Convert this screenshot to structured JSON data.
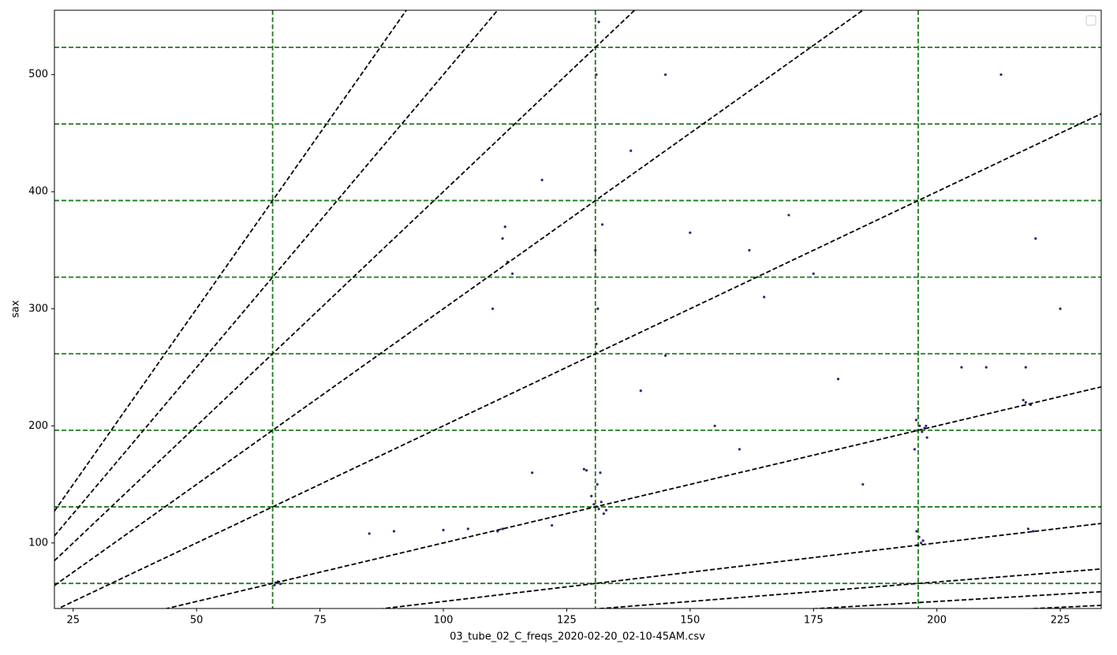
{
  "chart_data": {
    "type": "scatter",
    "xlabel": "03_tube_02_C_freqs_2020-02-20_02-10-45AM.csv",
    "ylabel": "sax",
    "xlim": [
      21.2,
      233.3
    ],
    "ylim": [
      44,
      555
    ],
    "xticks": [
      25,
      50,
      75,
      100,
      125,
      150,
      175,
      200,
      225
    ],
    "yticks": [
      100,
      200,
      300,
      400,
      500
    ],
    "vlines": [
      65.41,
      130.81,
      196.22
    ],
    "hlines": [
      65.41,
      130.81,
      196.22,
      261.63,
      327.03,
      392.44,
      457.85,
      523.25
    ],
    "harmonic_color": "#1f7a1f",
    "ratio_slopes": [
      6,
      5,
      4,
      3,
      2,
      1,
      0.5,
      0.3333,
      0.25,
      0.2
    ],
    "ratio_color": "#000000",
    "series": [
      {
        "color": "#3b1f6e",
        "x": [
          66,
          66.5,
          65.8,
          67,
          131,
          130.5,
          131.5,
          132,
          129.5,
          133,
          130,
          131.2,
          131.8,
          132.5,
          129,
          128.5,
          131,
          131.3,
          130.8,
          132.2,
          131,
          131.5,
          196,
          196.5,
          195.8,
          197,
          197.5,
          196.2,
          198,
          195.5,
          196.8,
          197.2,
          196,
          196.4,
          195.9,
          197.8,
          218,
          219,
          217.5,
          219.5,
          218.5,
          218,
          220,
          112,
          111,
          113,
          112.5,
          110,
          114,
          112,
          150,
          155,
          160,
          165,
          140,
          145,
          170,
          175,
          180,
          90,
          100,
          105,
          85,
          118,
          122,
          185,
          205,
          210,
          225,
          145,
          162,
          213,
          120,
          138
        ],
        "y": [
          66,
          67,
          64,
          65,
          131,
          133,
          129,
          135,
          130,
          128,
          140,
          150,
          160,
          125,
          162,
          163,
          270,
          300,
          350,
          372,
          500,
          545,
          196,
          200,
          205,
          195,
          198,
          215,
          190,
          180,
          100,
          102,
          98,
          105,
          110,
          200,
          220,
          218,
          222,
          110,
          112,
          250,
          360,
          112,
          110,
          340,
          370,
          300,
          330,
          360,
          365,
          200,
          180,
          310,
          230,
          260,
          380,
          330,
          240,
          110,
          111,
          112,
          108,
          160,
          115,
          150,
          250,
          250,
          300,
          500,
          350,
          500,
          410,
          435
        ]
      }
    ]
  }
}
